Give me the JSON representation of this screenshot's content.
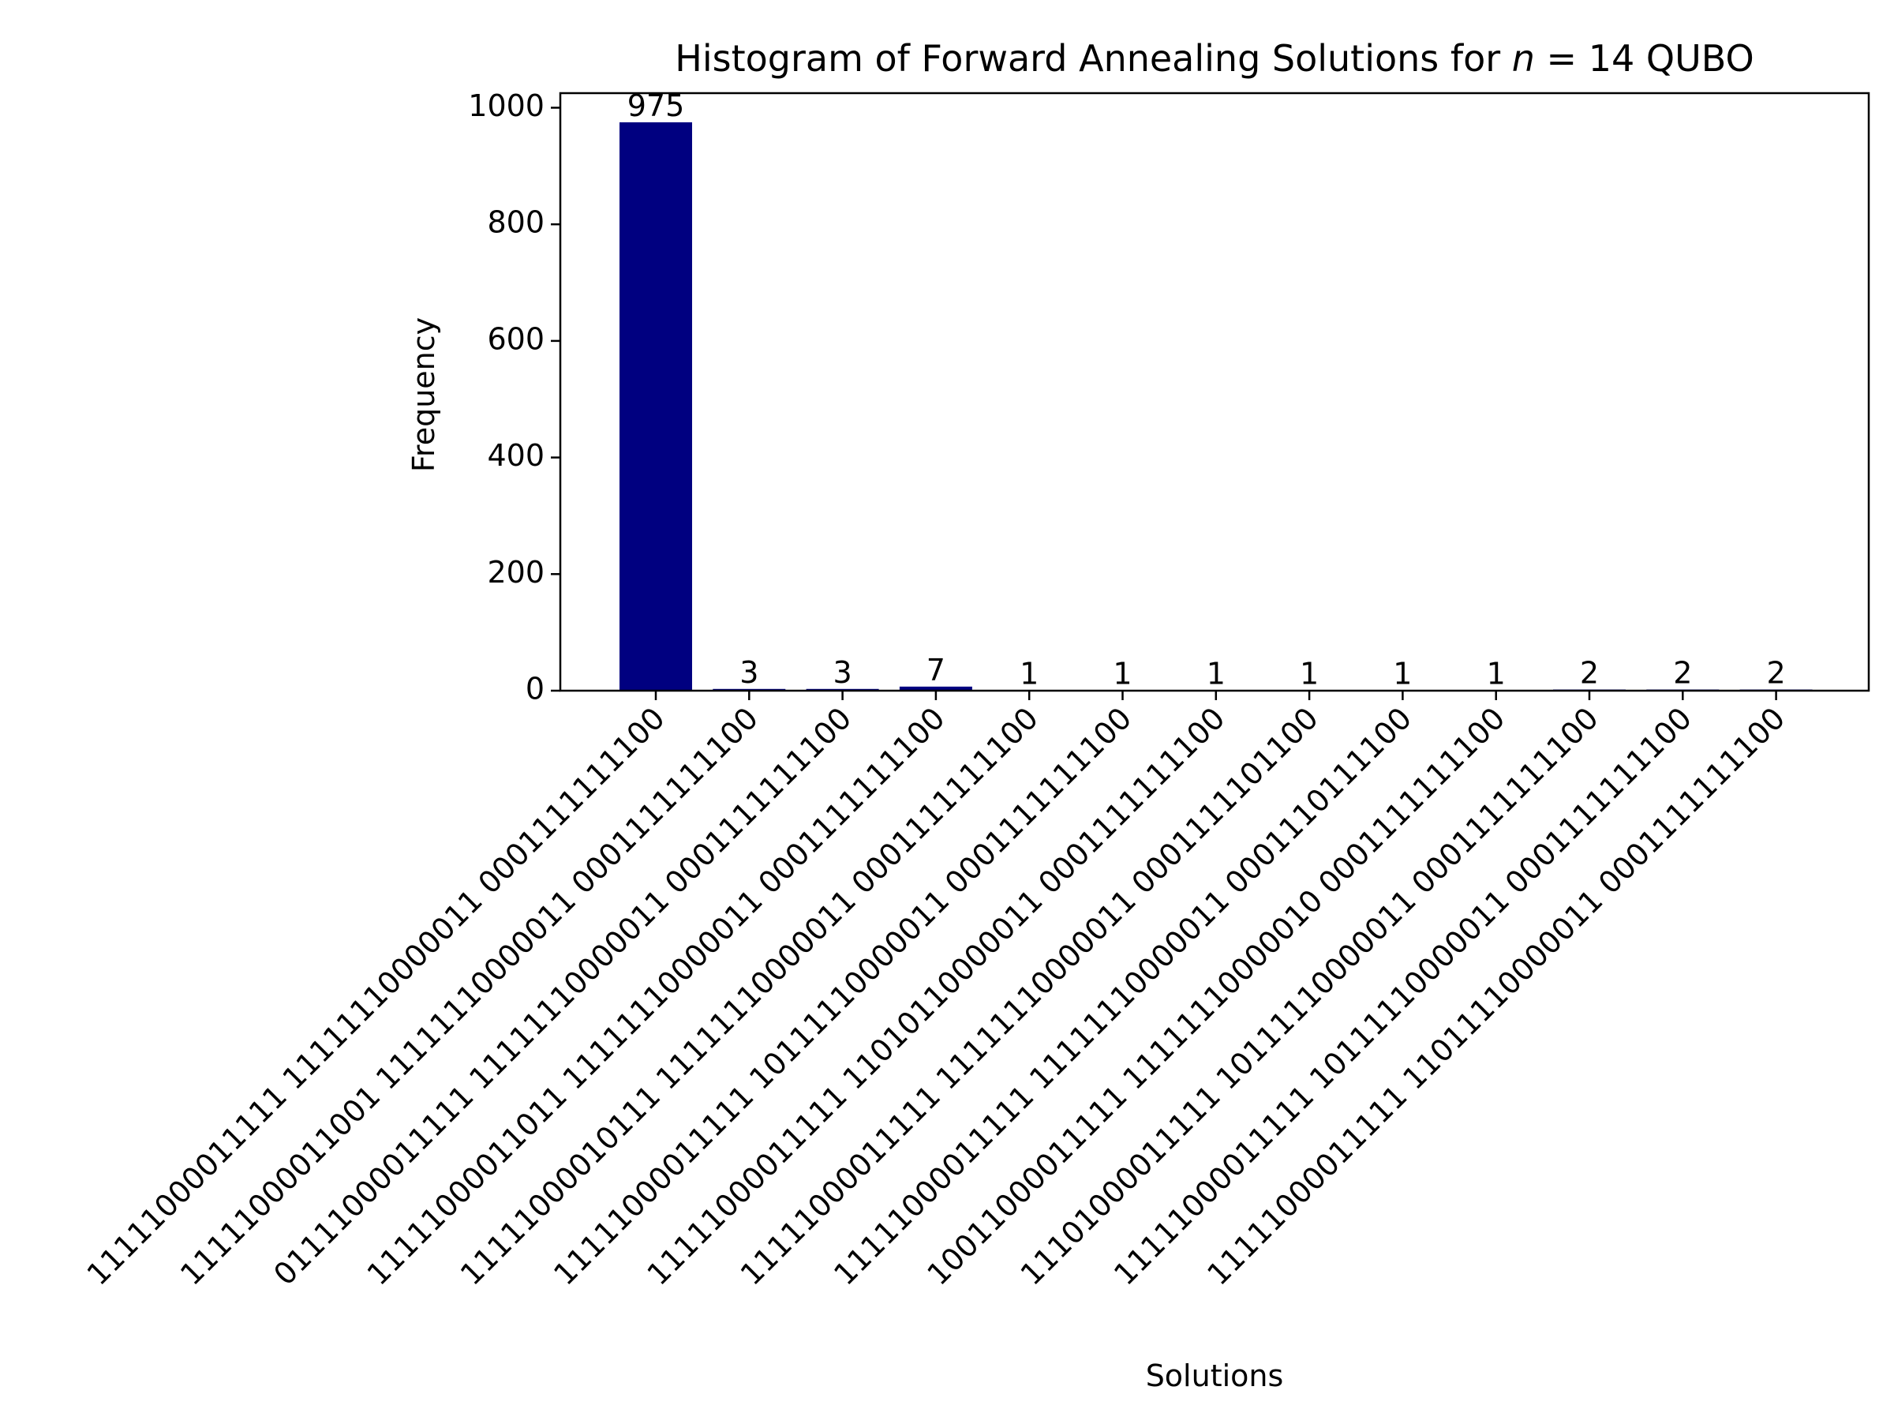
{
  "chart_data": {
    "type": "bar",
    "title": "Histogram of Forward Annealing Solutions for ",
    "title_math_var": "n",
    "title_math_rest": " = 14",
    "title_suffix": " QUBO",
    "xlabel": "Solutions",
    "ylabel": "Frequency",
    "ylim": [
      0,
      1025
    ],
    "yticks": [
      0,
      200,
      400,
      600,
      800,
      1000
    ],
    "grid": false,
    "bar_color": "#000080",
    "categories": [
      "11111000011111 11111110000011 0001111111100",
      "11111000011001 11111110000011 0001111111100",
      "01111000011111 11111110000011 0001111111100",
      "11111000011011 11111110000011 0001111111100",
      "11111000010111 11111110000011 0001111111100",
      "11111000011111 10111110000011 0001111111100",
      "11111000011111 11010110000011 0001111111100",
      "11111000011111 11111110000011 0001111101100",
      "11111000011111 11111110000011 0001110111100",
      "10011000011111 11111110000010 0001111111100",
      "11101000011111 10111110000011 0001111111100",
      "11111000011111 10111110000011 0001111111100",
      "11111000011111 11011110000011 0001111111100"
    ],
    "values": [
      975,
      3,
      3,
      7,
      1,
      1,
      1,
      1,
      1,
      1,
      2,
      2,
      2
    ]
  }
}
